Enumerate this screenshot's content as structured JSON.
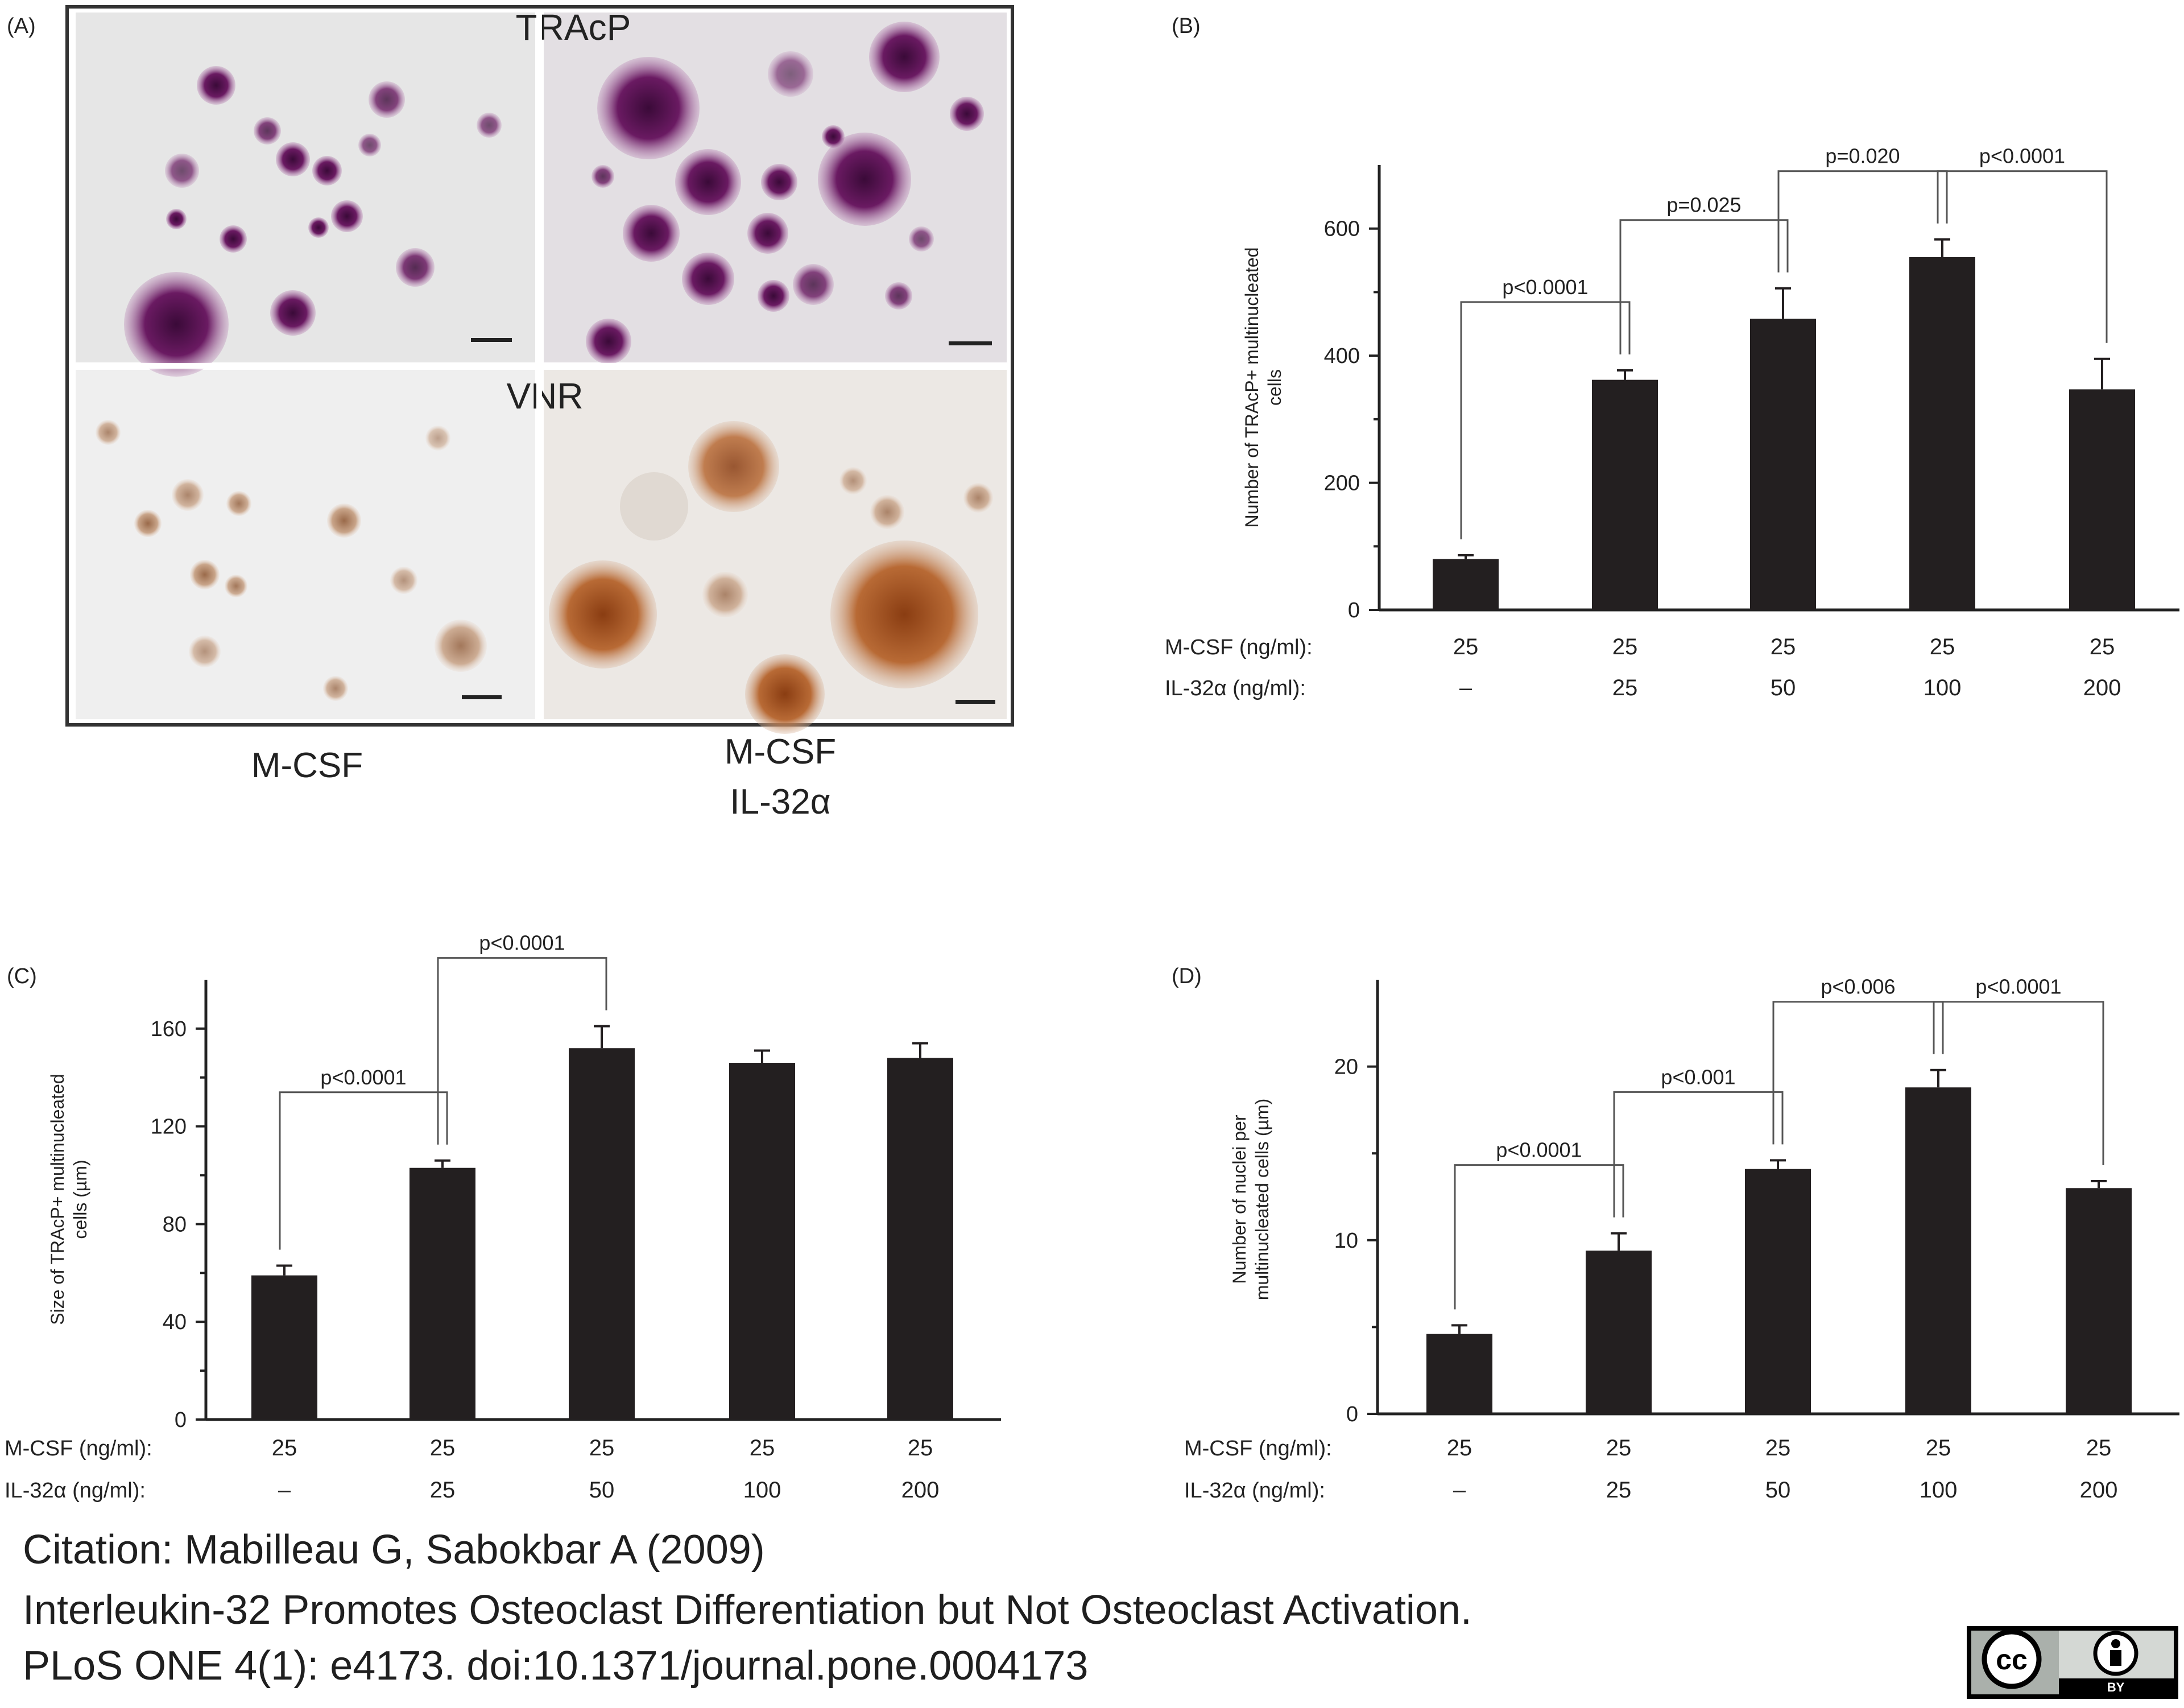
{
  "colors": {
    "bar": "#231f20",
    "axis": "#222222",
    "tracp_stain": "#7a1f6e",
    "vnr_stain": "#a0522d"
  },
  "panel_a": {
    "label": "(A)",
    "row_labels": [
      "TRAcP",
      "VNR"
    ],
    "condition_1": "M-CSF",
    "condition_2_line1": "M-CSF",
    "condition_2_line2": "IL-32α"
  },
  "row_labels": {
    "mcsf": "M-CSF (ng/ml):",
    "il32": "IL-32α (ng/ml):"
  },
  "chart_data": [
    {
      "panel": "(B)",
      "type": "bar",
      "ylabel_lines": [
        "Number of TRAcP+ multinucleated",
        "cells"
      ],
      "ylim": [
        0,
        700
      ],
      "yticks": [
        0,
        200,
        400,
        600
      ],
      "mcsf": [
        "25",
        "25",
        "25",
        "25",
        "25"
      ],
      "il32": [
        "–",
        "25",
        "50",
        "100",
        "200"
      ],
      "values": [
        80,
        362,
        458,
        555,
        347
      ],
      "errors": [
        6,
        15,
        48,
        28,
        48
      ],
      "comparisons": [
        {
          "from": 0,
          "to": 1,
          "label": "p<0.0001"
        },
        {
          "from": 1,
          "to": 2,
          "label": "p=0.025"
        },
        {
          "from": 2,
          "to": 3,
          "label": "p=0.020"
        },
        {
          "from": 3,
          "to": 4,
          "label": "p<0.0001"
        }
      ]
    },
    {
      "panel": "(C)",
      "type": "bar",
      "ylabel_lines": [
        "Size of TRAcP+ multinucleated",
        "cells (µm)"
      ],
      "ylim": [
        0,
        180
      ],
      "yticks": [
        0,
        40,
        80,
        120,
        160
      ],
      "mcsf": [
        "25",
        "25",
        "25",
        "25",
        "25"
      ],
      "il32": [
        "–",
        "25",
        "50",
        "100",
        "200"
      ],
      "values": [
        59,
        103,
        152,
        146,
        148
      ],
      "errors": [
        4,
        3,
        9,
        5,
        6
      ],
      "comparisons": [
        {
          "from": 0,
          "to": 1,
          "label": "p<0.0001"
        },
        {
          "from": 1,
          "to": 2,
          "label": "p<0.0001"
        }
      ]
    },
    {
      "panel": "(D)",
      "type": "bar",
      "ylabel_lines": [
        "Number of nuclei per",
        "multinucleated cells (µm)"
      ],
      "ylim": [
        0,
        25
      ],
      "yticks": [
        0,
        10,
        20
      ],
      "mcsf": [
        "25",
        "25",
        "25",
        "25",
        "25"
      ],
      "il32": [
        "–",
        "25",
        "50",
        "100",
        "200"
      ],
      "values": [
        4.6,
        9.4,
        14.1,
        18.8,
        13.0
      ],
      "errors": [
        0.5,
        1.0,
        0.5,
        1.0,
        0.4
      ],
      "comparisons": [
        {
          "from": 0,
          "to": 1,
          "label": "p<0.0001"
        },
        {
          "from": 1,
          "to": 2,
          "label": "p<0.001"
        },
        {
          "from": 2,
          "to": 3,
          "label": "p<0.006"
        },
        {
          "from": 3,
          "to": 4,
          "label": "p<0.0001"
        }
      ]
    }
  ],
  "citation": {
    "line1": "Citation: Mabilleau G, Sabokbar A (2009)",
    "line2": "Interleukin-32 Promotes Osteoclast Differentiation but Not Osteoclast Activation.",
    "line3": "PLoS ONE 4(1): e4173. doi:10.1371/journal.pone.0004173"
  },
  "license": {
    "cc": "cc",
    "by": "BY",
    "icon": "cc-by-icon"
  }
}
